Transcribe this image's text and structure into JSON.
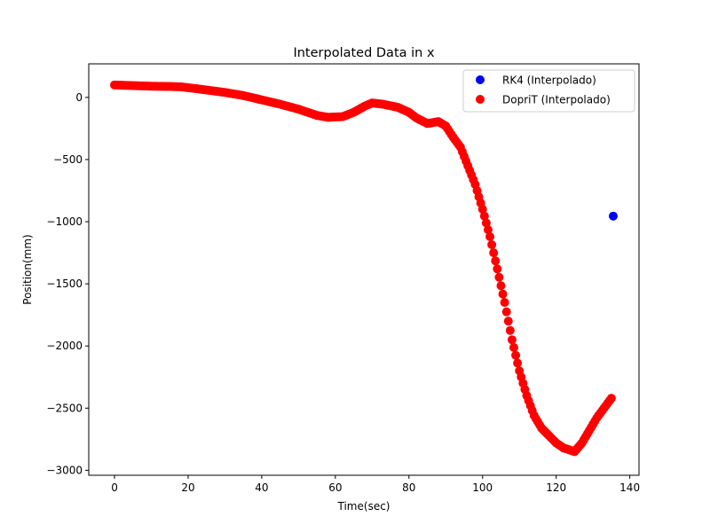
{
  "chart_data": {
    "type": "scatter",
    "title": "Interpolated Data in x",
    "xlabel": "Time(sec)",
    "ylabel": "Position(mm)",
    "xlim": [
      -7,
      142.5
    ],
    "ylim": [
      -3040,
      270
    ],
    "xticks": [
      0,
      20,
      40,
      60,
      80,
      100,
      120,
      140
    ],
    "yticks": [
      0,
      -500,
      -1000,
      -1500,
      -2000,
      -2500,
      -3000
    ],
    "xtick_labels": [
      "0",
      "20",
      "40",
      "60",
      "80",
      "100",
      "120",
      "140"
    ],
    "ytick_labels": [
      "0",
      "−500",
      "−1000",
      "−1500",
      "−2000",
      "−2500",
      "−3000"
    ],
    "grid": false,
    "legend_position": "top-right",
    "series": [
      {
        "name": "RK4 (Interpolado)",
        "color": "#0000ff",
        "points": [
          [
            135.5,
            -955
          ]
        ]
      },
      {
        "name": "DopriT (Interpolado)",
        "color": "#ff0000",
        "points": [
          [
            0,
            100
          ],
          [
            5,
            95
          ],
          [
            10,
            90
          ],
          [
            15,
            88
          ],
          [
            18,
            85
          ],
          [
            20,
            78
          ],
          [
            25,
            60
          ],
          [
            30,
            40
          ],
          [
            35,
            15
          ],
          [
            40,
            -20
          ],
          [
            45,
            -55
          ],
          [
            50,
            -95
          ],
          [
            55,
            -145
          ],
          [
            58,
            -160
          ],
          [
            62,
            -155
          ],
          [
            65,
            -120
          ],
          [
            68,
            -70
          ],
          [
            70,
            -45
          ],
          [
            73,
            -55
          ],
          [
            77,
            -80
          ],
          [
            80,
            -120
          ],
          [
            82,
            -165
          ],
          [
            85,
            -210
          ],
          [
            88,
            -195
          ],
          [
            90,
            -230
          ],
          [
            92,
            -320
          ],
          [
            94,
            -400
          ],
          [
            96,
            -550
          ],
          [
            98,
            -700
          ],
          [
            100,
            -900
          ],
          [
            102,
            -1120
          ],
          [
            104,
            -1380
          ],
          [
            106,
            -1650
          ],
          [
            108,
            -1950
          ],
          [
            110,
            -2200
          ],
          [
            112,
            -2400
          ],
          [
            114,
            -2560
          ],
          [
            116,
            -2660
          ],
          [
            118,
            -2720
          ],
          [
            120,
            -2780
          ],
          [
            122,
            -2820
          ],
          [
            124,
            -2840
          ],
          [
            125,
            -2850
          ],
          [
            127,
            -2780
          ],
          [
            129,
            -2680
          ],
          [
            131,
            -2580
          ],
          [
            133,
            -2500
          ],
          [
            135,
            -2420
          ]
        ]
      }
    ]
  }
}
